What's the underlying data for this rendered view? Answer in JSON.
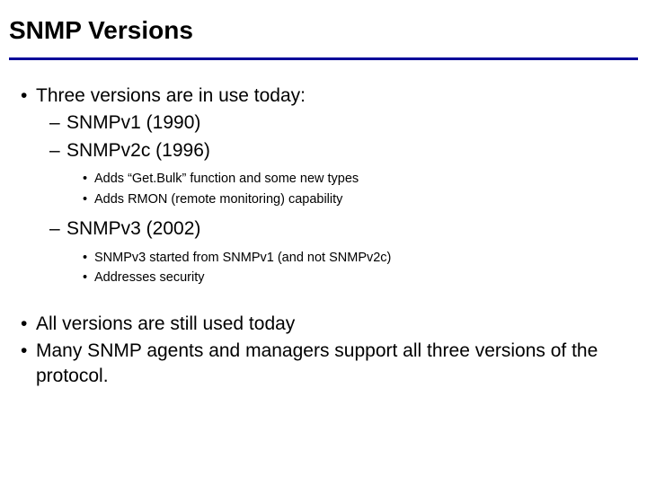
{
  "colors": {
    "rule": "#000099",
    "background": "#ffffff",
    "text": "#000000"
  },
  "typography": {
    "title_fontsize": 28,
    "l1_fontsize": 21,
    "l2_fontsize": 21,
    "l3_fontsize": 14.5,
    "font_family": "Arial"
  },
  "title": "SNMP Versions",
  "bullets": {
    "b1": "Three versions are in use today:",
    "b1_1": "SNMPv1 (1990)",
    "b1_2": "SNMPv2c (1996)",
    "b1_2_1": "Adds “Get.Bulk” function and some new types",
    "b1_2_2": "Adds RMON (remote monitoring) capability",
    "b1_3": "SNMPv3  (2002)",
    "b1_3_1": "SNMPv3 started from SNMPv1 (and not SNMPv2c)",
    "b1_3_2": "Addresses security",
    "b2": "All versions are still used today",
    "b3": "Many SNMP agents and managers support all three versions of the protocol."
  }
}
